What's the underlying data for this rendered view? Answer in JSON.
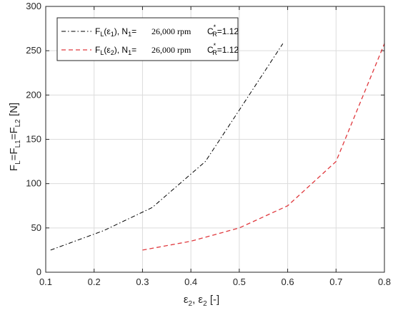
{
  "chart_data": {
    "type": "line",
    "x_range": [
      0.1,
      0.8
    ],
    "y_range": [
      0,
      300
    ],
    "x_ticks": [
      "0.1",
      "0.2",
      "0.3",
      "0.4",
      "0.5",
      "0.6",
      "0.7",
      "0.8"
    ],
    "y_ticks": [
      "0",
      "50",
      "100",
      "150",
      "200",
      "250",
      "300"
    ],
    "xlabel": {
      "p1": "ε",
      "s1": "2",
      "p2": ", ε",
      "s2": "2",
      "p3": " [-]"
    },
    "ylabel": {
      "p1": "F",
      "s1": "L",
      "p2": "=F",
      "s2": "L1",
      "p3": "=F",
      "s3": "L2",
      "p4": " [N]"
    },
    "grid": true,
    "box": true,
    "legend_position": "top-left",
    "series": [
      {
        "color": "#000000",
        "line_style": "dash-dot",
        "x": [
          0.11,
          0.22,
          0.32,
          0.43,
          0.5,
          0.59
        ],
        "y": [
          25,
          47,
          73,
          125,
          183,
          258
        ],
        "legend": {
          "a": "F",
          "a_sub": "L",
          "b": "(ε",
          "b_sub": "1",
          "c": "), N",
          "c_sub": "1",
          "d": "= ",
          "rpm": "26,000 rpm",
          "cr": "C",
          "cr_sup": "*",
          "cr_sub": "R",
          "cr_val": "=1.12"
        }
      },
      {
        "color": "#e0393e",
        "line_style": "dashed",
        "x": [
          0.3,
          0.4,
          0.5,
          0.6,
          0.7,
          0.8
        ],
        "y": [
          25,
          35,
          50,
          75,
          125,
          258
        ],
        "legend": {
          "a": "F",
          "a_sub": "L",
          "b": "(ε",
          "b_sub": "2",
          "c": "), N",
          "c_sub": "1",
          "d": "= ",
          "rpm": "26,000 rpm",
          "cr": "C",
          "cr_sup": "*",
          "cr_sub": "R",
          "cr_val": "=1.12"
        }
      }
    ]
  }
}
